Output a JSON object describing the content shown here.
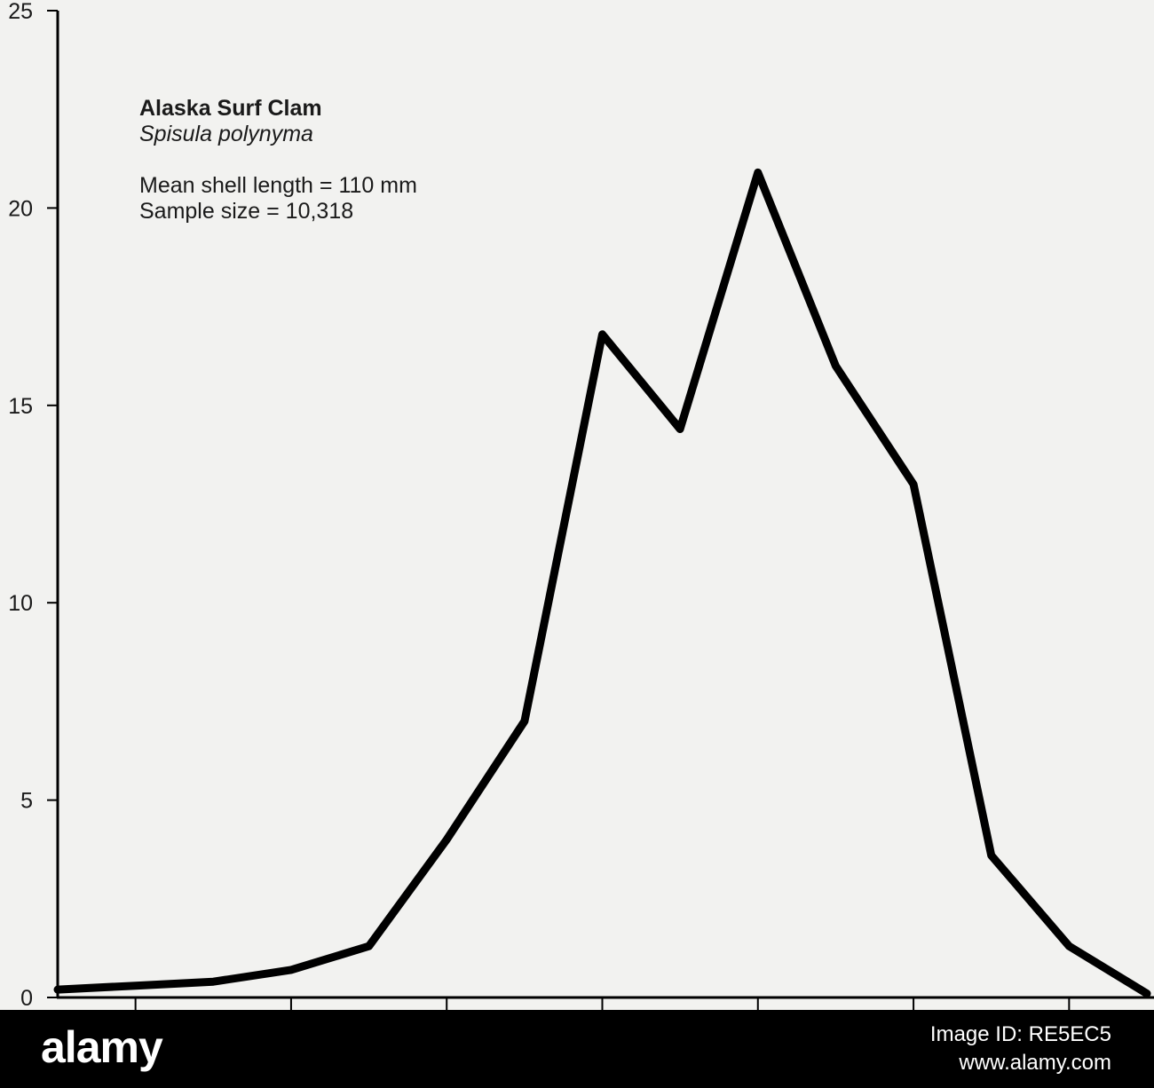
{
  "chart_data": {
    "type": "line",
    "title": "Alaska Surf Clam",
    "subtitle": "Spisula polynyma",
    "annotations": [
      "Mean shell length = 110 mm",
      "Sample size = 10,318"
    ],
    "xlabel": "",
    "ylabel": "",
    "ylim": [
      0,
      25
    ],
    "yticks": [
      0,
      5,
      10,
      15,
      20,
      25
    ],
    "xlim": [
      0,
      14
    ],
    "x_tick_positions": [
      1,
      3,
      5,
      7,
      9,
      11,
      13
    ],
    "grid": false,
    "series": [
      {
        "x": [
          0,
          1,
          2,
          3,
          4,
          5,
          6,
          7,
          8,
          9,
          10,
          11,
          12,
          13,
          14
        ],
        "values": [
          0.2,
          0.3,
          0.4,
          0.7,
          1.3,
          4.0,
          7.0,
          16.8,
          14.4,
          20.9,
          16.0,
          13.0,
          3.6,
          1.3,
          0.1
        ],
        "color": "#000000"
      }
    ]
  },
  "footer": {
    "brand": "alamy",
    "image_id": "Image ID: RE5EC5",
    "site": "www.alamy.com"
  }
}
